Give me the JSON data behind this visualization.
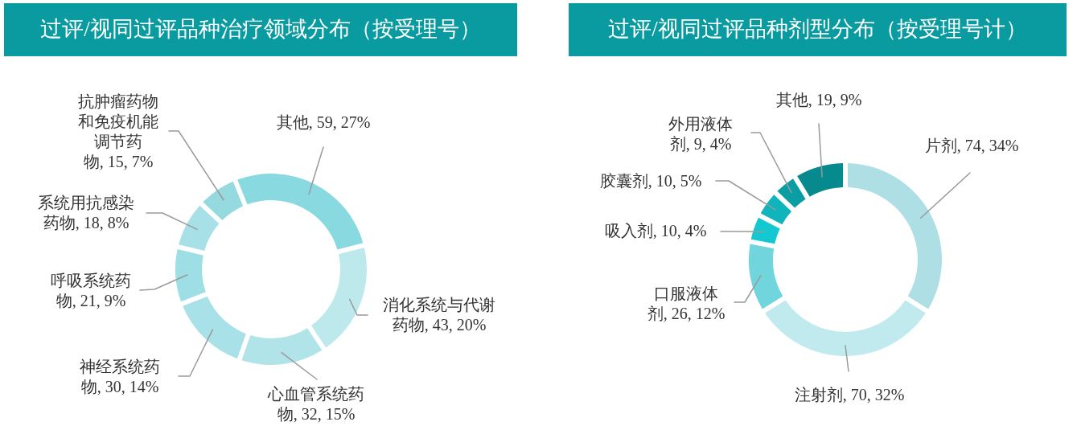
{
  "chart_data": [
    {
      "type": "donut",
      "title": "过评/视同过评品种治疗领域分布（按受理号）",
      "categories": [
        "其他",
        "消化系统与代谢药物",
        "心血管系统药物",
        "神经系统药物",
        "呼吸系统药物",
        "系统用抗感染药物",
        "抗肿瘤药物和免疫机能调节药物"
      ],
      "values": [
        59,
        43,
        32,
        30,
        21,
        18,
        15
      ],
      "colors": [
        "#88d9e0",
        "#bde9ed",
        "#b1e4e9",
        "#a8e2e8",
        "#9ddfe5",
        "#a7e1e7",
        "#95dade"
      ],
      "value_labels": [
        "59, 27%",
        "43, 20%",
        "32, 15%",
        "30, 14%",
        "21, 9%",
        "18, 8%",
        "15, 7%"
      ]
    },
    {
      "type": "donut",
      "title": "过评/视同过评品种剂型分布（按受理号计）",
      "categories": [
        "片剂",
        "注射剂",
        "口服液体剂",
        "吸入剂",
        "胶囊剂",
        "外用液体剂",
        "其他"
      ],
      "values": [
        74,
        70,
        26,
        10,
        10,
        9,
        19
      ],
      "colors": [
        "#addfe5",
        "#c0eaee",
        "#70d5dd",
        "#14c8d2",
        "#0fb4bc",
        "#0a9da2",
        "#078a8d"
      ],
      "value_labels": [
        "74, 34%",
        "70, 32%",
        "26, 12%",
        "10, 4%",
        "10, 5%",
        "9, 4%",
        "19, 9%"
      ]
    }
  ]
}
